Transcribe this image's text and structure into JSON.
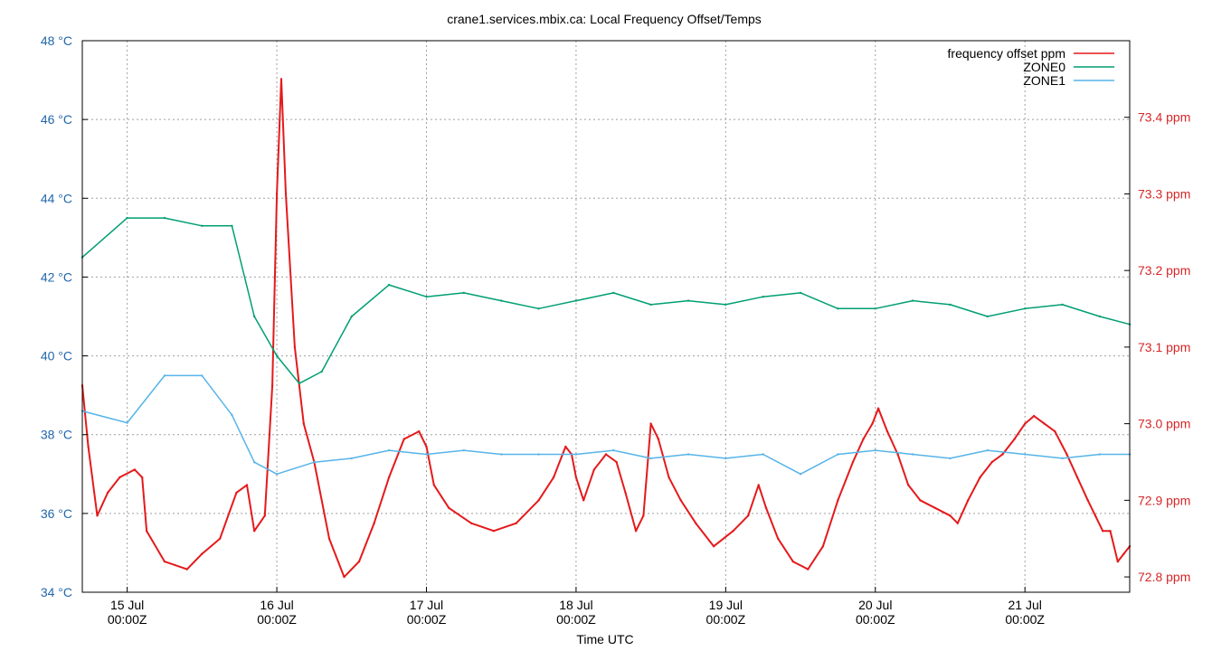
{
  "chart_data": {
    "type": "line",
    "title": "crane1.services.mbix.ca: Local Frequency Offset/Temps",
    "xlabel": "Time UTC",
    "x_range_days": [
      14.7,
      21.7
    ],
    "x_ticks": [
      {
        "day": 15,
        "line1": "15 Jul",
        "line2": "00:00Z"
      },
      {
        "day": 16,
        "line1": "16 Jul",
        "line2": "00:00Z"
      },
      {
        "day": 17,
        "line1": "17 Jul",
        "line2": "00:00Z"
      },
      {
        "day": 18,
        "line1": "18 Jul",
        "line2": "00:00Z"
      },
      {
        "day": 19,
        "line1": "19 Jul",
        "line2": "00:00Z"
      },
      {
        "day": 20,
        "line1": "20 Jul",
        "line2": "00:00Z"
      },
      {
        "day": 21,
        "line1": "21 Jul",
        "line2": "00:00Z"
      }
    ],
    "y_left": {
      "range": [
        34,
        48
      ],
      "ticks": [
        34,
        36,
        38,
        40,
        42,
        44,
        46,
        48
      ],
      "tick_labels": [
        "34 °C",
        "36 °C",
        "38 °C",
        "40 °C",
        "42 °C",
        "44 °C",
        "46 °C",
        "48 °C"
      ],
      "color": "#2166ac"
    },
    "y_right": {
      "range": [
        72.78,
        73.5
      ],
      "ticks": [
        72.8,
        72.9,
        73.0,
        73.1,
        73.2,
        73.3,
        73.4
      ],
      "tick_labels": [
        "72.8 ppm",
        "72.9 ppm",
        "73.0 ppm",
        "73.1 ppm",
        "73.2 ppm",
        "73.3 ppm",
        "73.4 ppm"
      ],
      "color": "#d62728"
    },
    "grid": true,
    "legend_position": "top-right",
    "series": [
      {
        "name": "frequency offset ppm",
        "axis": "right",
        "color": "#e41a1c",
        "points": [
          [
            14.7,
            73.05
          ],
          [
            14.74,
            72.97
          ],
          [
            14.8,
            72.88
          ],
          [
            14.87,
            72.91
          ],
          [
            14.95,
            72.93
          ],
          [
            15.05,
            72.94
          ],
          [
            15.1,
            72.93
          ],
          [
            15.13,
            72.86
          ],
          [
            15.25,
            72.82
          ],
          [
            15.4,
            72.81
          ],
          [
            15.5,
            72.83
          ],
          [
            15.62,
            72.85
          ],
          [
            15.73,
            72.91
          ],
          [
            15.8,
            72.92
          ],
          [
            15.85,
            72.86
          ],
          [
            15.92,
            72.88
          ],
          [
            15.97,
            73.05
          ],
          [
            16.0,
            73.3
          ],
          [
            16.03,
            73.45
          ],
          [
            16.06,
            73.3
          ],
          [
            16.12,
            73.1
          ],
          [
            16.18,
            73.0
          ],
          [
            16.25,
            72.95
          ],
          [
            16.35,
            72.85
          ],
          [
            16.45,
            72.8
          ],
          [
            16.55,
            72.82
          ],
          [
            16.65,
            72.87
          ],
          [
            16.75,
            72.93
          ],
          [
            16.85,
            72.98
          ],
          [
            16.95,
            72.99
          ],
          [
            17.0,
            72.97
          ],
          [
            17.05,
            72.92
          ],
          [
            17.15,
            72.89
          ],
          [
            17.3,
            72.87
          ],
          [
            17.45,
            72.86
          ],
          [
            17.6,
            72.87
          ],
          [
            17.75,
            72.9
          ],
          [
            17.85,
            72.93
          ],
          [
            17.93,
            72.97
          ],
          [
            17.97,
            72.96
          ],
          [
            18.0,
            72.93
          ],
          [
            18.05,
            72.9
          ],
          [
            18.12,
            72.94
          ],
          [
            18.2,
            72.96
          ],
          [
            18.27,
            72.95
          ],
          [
            18.33,
            72.91
          ],
          [
            18.4,
            72.86
          ],
          [
            18.45,
            72.88
          ],
          [
            18.5,
            73.0
          ],
          [
            18.55,
            72.98
          ],
          [
            18.62,
            72.93
          ],
          [
            18.7,
            72.9
          ],
          [
            18.8,
            72.87
          ],
          [
            18.92,
            72.84
          ],
          [
            19.05,
            72.86
          ],
          [
            19.15,
            72.88
          ],
          [
            19.22,
            72.92
          ],
          [
            19.27,
            72.89
          ],
          [
            19.35,
            72.85
          ],
          [
            19.45,
            72.82
          ],
          [
            19.55,
            72.81
          ],
          [
            19.65,
            72.84
          ],
          [
            19.75,
            72.9
          ],
          [
            19.85,
            72.95
          ],
          [
            19.92,
            72.98
          ],
          [
            19.98,
            73.0
          ],
          [
            20.02,
            73.02
          ],
          [
            20.08,
            72.99
          ],
          [
            20.15,
            72.96
          ],
          [
            20.22,
            72.92
          ],
          [
            20.3,
            72.9
          ],
          [
            20.4,
            72.89
          ],
          [
            20.5,
            72.88
          ],
          [
            20.55,
            72.87
          ],
          [
            20.62,
            72.9
          ],
          [
            20.7,
            72.93
          ],
          [
            20.78,
            72.95
          ],
          [
            20.85,
            72.96
          ],
          [
            20.93,
            72.98
          ],
          [
            21.0,
            73.0
          ],
          [
            21.06,
            73.01
          ],
          [
            21.13,
            73.0
          ],
          [
            21.2,
            72.99
          ],
          [
            21.28,
            72.96
          ],
          [
            21.35,
            72.93
          ],
          [
            21.42,
            72.9
          ],
          [
            21.47,
            72.88
          ],
          [
            21.52,
            72.86
          ],
          [
            21.57,
            72.86
          ],
          [
            21.62,
            72.82
          ],
          [
            21.66,
            72.83
          ],
          [
            21.7,
            72.84
          ]
        ]
      },
      {
        "name": "ZONE0",
        "axis": "left",
        "color": "#009e73",
        "points": [
          [
            14.7,
            42.5
          ],
          [
            15.0,
            43.5
          ],
          [
            15.25,
            43.5
          ],
          [
            15.5,
            43.3
          ],
          [
            15.7,
            43.3
          ],
          [
            15.85,
            41.0
          ],
          [
            16.0,
            40.0
          ],
          [
            16.15,
            39.3
          ],
          [
            16.3,
            39.6
          ],
          [
            16.5,
            41.0
          ],
          [
            16.75,
            41.8
          ],
          [
            17.0,
            41.5
          ],
          [
            17.25,
            41.6
          ],
          [
            17.5,
            41.4
          ],
          [
            17.75,
            41.2
          ],
          [
            18.0,
            41.4
          ],
          [
            18.25,
            41.6
          ],
          [
            18.5,
            41.3
          ],
          [
            18.75,
            41.4
          ],
          [
            19.0,
            41.3
          ],
          [
            19.25,
            41.5
          ],
          [
            19.5,
            41.6
          ],
          [
            19.75,
            41.2
          ],
          [
            20.0,
            41.2
          ],
          [
            20.25,
            41.4
          ],
          [
            20.5,
            41.3
          ],
          [
            20.75,
            41.0
          ],
          [
            21.0,
            41.2
          ],
          [
            21.25,
            41.3
          ],
          [
            21.5,
            41.0
          ],
          [
            21.7,
            40.8
          ]
        ]
      },
      {
        "name": "ZONE1",
        "axis": "left",
        "color": "#56b4e9",
        "points": [
          [
            14.7,
            38.6
          ],
          [
            15.0,
            38.3
          ],
          [
            15.25,
            39.5
          ],
          [
            15.5,
            39.5
          ],
          [
            15.7,
            38.5
          ],
          [
            15.85,
            37.3
          ],
          [
            16.0,
            37.0
          ],
          [
            16.25,
            37.3
          ],
          [
            16.5,
            37.4
          ],
          [
            16.75,
            37.6
          ],
          [
            17.0,
            37.5
          ],
          [
            17.25,
            37.6
          ],
          [
            17.5,
            37.5
          ],
          [
            17.75,
            37.5
          ],
          [
            18.0,
            37.5
          ],
          [
            18.25,
            37.6
          ],
          [
            18.5,
            37.4
          ],
          [
            18.75,
            37.5
          ],
          [
            19.0,
            37.4
          ],
          [
            19.25,
            37.5
          ],
          [
            19.5,
            37.0
          ],
          [
            19.75,
            37.5
          ],
          [
            20.0,
            37.6
          ],
          [
            20.25,
            37.5
          ],
          [
            20.5,
            37.4
          ],
          [
            20.75,
            37.6
          ],
          [
            21.0,
            37.5
          ],
          [
            21.25,
            37.4
          ],
          [
            21.5,
            37.5
          ],
          [
            21.7,
            37.5
          ]
        ]
      }
    ]
  }
}
